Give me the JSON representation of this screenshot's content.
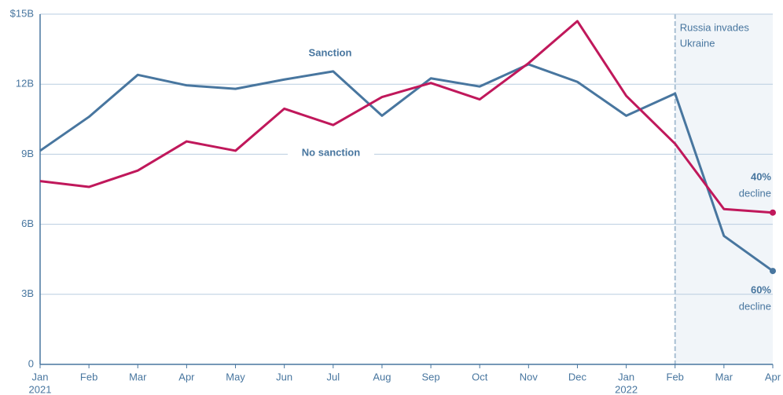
{
  "chart_data": {
    "type": "line",
    "categories": [
      "Jan",
      "Feb",
      "Mar",
      "Apr",
      "May",
      "Jun",
      "Jul",
      "Aug",
      "Sep",
      "Oct",
      "Nov",
      "Dec",
      "Jan",
      "Feb",
      "Mar",
      "Apr"
    ],
    "x_sublabels": [
      "2021",
      null,
      null,
      null,
      null,
      null,
      null,
      null,
      null,
      null,
      null,
      null,
      "2022",
      null,
      null,
      null
    ],
    "series": [
      {
        "name": "Sanction",
        "color": "#48769f",
        "values": [
          9.15,
          10.6,
          12.4,
          11.95,
          11.8,
          12.2,
          12.55,
          10.65,
          12.25,
          11.9,
          12.85,
          12.1,
          10.65,
          11.6,
          5.5,
          4.0
        ],
        "end_label": [
          "60%",
          "decline"
        ]
      },
      {
        "name": "No sanction",
        "color": "#c0185b",
        "values": [
          7.85,
          7.6,
          8.3,
          9.55,
          9.15,
          10.95,
          10.25,
          11.45,
          12.05,
          11.35,
          12.9,
          14.7,
          11.5,
          9.45,
          6.65,
          6.5
        ],
        "end_label": [
          "40%",
          "decline"
        ]
      }
    ],
    "ylim": [
      0,
      15
    ],
    "yticks": [
      0,
      {
        "value": 3,
        "label": "3B"
      },
      {
        "value": 6,
        "label": "6B"
      },
      {
        "value": 9,
        "label": "9B"
      },
      {
        "value": 12,
        "label": "12B"
      },
      {
        "value": 15,
        "label": "$15B"
      }
    ],
    "grid": true,
    "shade_from": 13,
    "event_lines": [
      "Russia invades",
      "Ukraine"
    ]
  }
}
